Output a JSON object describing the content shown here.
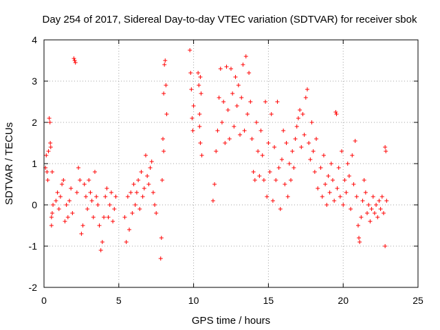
{
  "chart_data": {
    "type": "scatter",
    "title": "Day 254 of 2017, Sidereal Day-to-day VTEC variation (SDTVAR) for receiver sbok",
    "xlabel": "GPS time / hours",
    "ylabel": "SDTVAR / TECUs",
    "xlim": [
      0,
      25
    ],
    "ylim": [
      -2,
      4
    ],
    "xticks": [
      "0",
      "5",
      "10",
      "15",
      "20",
      "25"
    ],
    "yticks": [
      "-2",
      "-1",
      "0",
      "1",
      "2",
      "3",
      "4"
    ],
    "grid": true,
    "marker": "+",
    "color": "#ff0000",
    "series": [
      {
        "name": "SDTVAR",
        "points": [
          [
            0.1,
            0.9
          ],
          [
            0.15,
            1.2
          ],
          [
            0.2,
            0.8
          ],
          [
            0.25,
            0.6
          ],
          [
            0.3,
            1.3
          ],
          [
            0.35,
            2.1
          ],
          [
            0.4,
            2.0
          ],
          [
            0.42,
            1.5
          ],
          [
            0.45,
            1.4
          ],
          [
            0.5,
            -0.3
          ],
          [
            0.5,
            -0.5
          ],
          [
            0.55,
            -0.2
          ],
          [
            0.6,
            0.0
          ],
          [
            0.55,
            0.8
          ],
          [
            0.8,
            0.1
          ],
          [
            0.9,
            0.3
          ],
          [
            1.0,
            -0.1
          ],
          [
            1.1,
            0.2
          ],
          [
            1.2,
            0.5
          ],
          [
            1.3,
            0.6
          ],
          [
            1.4,
            -0.4
          ],
          [
            1.5,
            0.0
          ],
          [
            1.6,
            -0.3
          ],
          [
            1.7,
            0.1
          ],
          [
            1.8,
            0.4
          ],
          [
            1.9,
            -0.2
          ],
          [
            2.0,
            3.55
          ],
          [
            2.05,
            3.5
          ],
          [
            2.1,
            3.45
          ],
          [
            2.2,
            0.3
          ],
          [
            2.3,
            0.9
          ],
          [
            2.4,
            0.6
          ],
          [
            2.5,
            -0.7
          ],
          [
            2.6,
            -0.5
          ],
          [
            2.7,
            0.5
          ],
          [
            2.8,
            0.2
          ],
          [
            2.9,
            -0.1
          ],
          [
            3.0,
            0.6
          ],
          [
            3.1,
            0.3
          ],
          [
            3.2,
            0.1
          ],
          [
            3.3,
            -0.3
          ],
          [
            3.4,
            0.8
          ],
          [
            3.5,
            0.2
          ],
          [
            3.6,
            0.0
          ],
          [
            3.7,
            -0.5
          ],
          [
            3.8,
            -1.1
          ],
          [
            3.9,
            -0.9
          ],
          [
            4.0,
            -0.3
          ],
          [
            4.1,
            0.2
          ],
          [
            4.2,
            0.4
          ],
          [
            4.3,
            -0.3
          ],
          [
            4.4,
            0.0
          ],
          [
            4.5,
            0.3
          ],
          [
            4.6,
            -0.4
          ],
          [
            4.7,
            -0.1
          ],
          [
            4.8,
            0.2
          ],
          [
            5.4,
            -0.3
          ],
          [
            5.5,
            -0.9
          ],
          [
            5.6,
            0.2
          ],
          [
            5.7,
            -0.6
          ],
          [
            5.8,
            0.3
          ],
          [
            5.9,
            -0.2
          ],
          [
            6.0,
            0.5
          ],
          [
            6.1,
            0.0
          ],
          [
            6.2,
            0.3
          ],
          [
            6.3,
            0.6
          ],
          [
            6.4,
            -0.1
          ],
          [
            6.5,
            0.8
          ],
          [
            6.6,
            0.2
          ],
          [
            6.7,
            0.4
          ],
          [
            6.8,
            1.2
          ],
          [
            6.9,
            0.7
          ],
          [
            7.0,
            0.5
          ],
          [
            7.1,
            0.9
          ],
          [
            7.2,
            1.05
          ],
          [
            7.3,
            0.3
          ],
          [
            7.4,
            0.0
          ],
          [
            7.5,
            -0.2
          ],
          [
            7.8,
            -1.3
          ],
          [
            7.85,
            -0.8
          ],
          [
            7.9,
            0.6
          ],
          [
            7.95,
            1.6
          ],
          [
            8.0,
            2.7
          ],
          [
            8.05,
            3.4
          ],
          [
            8.1,
            3.5
          ],
          [
            8.15,
            2.9
          ],
          [
            8.2,
            2.2
          ],
          [
            8.0,
            1.3
          ],
          [
            9.75,
            3.75
          ],
          [
            9.8,
            3.2
          ],
          [
            9.85,
            2.8
          ],
          [
            9.9,
            2.1
          ],
          [
            9.95,
            1.8
          ],
          [
            10.0,
            2.4
          ],
          [
            10.3,
            3.2
          ],
          [
            10.35,
            2.9
          ],
          [
            10.4,
            1.9
          ],
          [
            10.45,
            1.5
          ],
          [
            10.5,
            2.7
          ],
          [
            10.55,
            1.2
          ],
          [
            10.4,
            2.2
          ],
          [
            10.45,
            3.1
          ],
          [
            11.3,
            0.1
          ],
          [
            11.4,
            0.5
          ],
          [
            11.5,
            1.3
          ],
          [
            11.6,
            1.8
          ],
          [
            11.7,
            2.6
          ],
          [
            11.8,
            3.3
          ],
          [
            11.9,
            2.0
          ],
          [
            12.0,
            2.5
          ],
          [
            12.1,
            1.5
          ],
          [
            12.2,
            3.35
          ],
          [
            12.3,
            2.3
          ],
          [
            12.4,
            1.6
          ],
          [
            12.5,
            3.3
          ],
          [
            12.6,
            2.7
          ],
          [
            12.7,
            1.9
          ],
          [
            12.8,
            3.1
          ],
          [
            12.9,
            2.4
          ],
          [
            13.0,
            2.9
          ],
          [
            13.1,
            1.7
          ],
          [
            13.2,
            2.6
          ],
          [
            13.3,
            3.4
          ],
          [
            13.4,
            1.8
          ],
          [
            13.5,
            3.6
          ],
          [
            13.6,
            2.2
          ],
          [
            13.7,
            3.2
          ],
          [
            13.8,
            2.5
          ],
          [
            13.9,
            1.6
          ],
          [
            14.0,
            0.8
          ],
          [
            14.1,
            0.6
          ],
          [
            14.2,
            2.0
          ],
          [
            14.3,
            1.3
          ],
          [
            14.4,
            0.7
          ],
          [
            14.5,
            1.8
          ],
          [
            14.6,
            1.2
          ],
          [
            14.7,
            0.6
          ],
          [
            14.8,
            2.5
          ],
          [
            14.9,
            0.2
          ],
          [
            15.0,
            1.5
          ],
          [
            15.1,
            0.8
          ],
          [
            15.2,
            2.2
          ],
          [
            15.3,
            0.1
          ],
          [
            15.4,
            1.4
          ],
          [
            15.5,
            0.6
          ],
          [
            15.6,
            2.5
          ],
          [
            15.7,
            0.9
          ],
          [
            15.8,
            -0.1
          ],
          [
            15.9,
            1.1
          ],
          [
            16.0,
            1.8
          ],
          [
            16.1,
            0.5
          ],
          [
            16.2,
            1.5
          ],
          [
            16.3,
            0.2
          ],
          [
            16.4,
            1.0
          ],
          [
            16.5,
            0.6
          ],
          [
            16.6,
            1.3
          ],
          [
            16.7,
            0.9
          ],
          [
            16.8,
            1.6
          ],
          [
            16.9,
            1.9
          ],
          [
            17.0,
            2.1
          ],
          [
            17.1,
            2.3
          ],
          [
            17.2,
            1.4
          ],
          [
            17.3,
            2.2
          ],
          [
            17.4,
            1.7
          ],
          [
            17.5,
            2.6
          ],
          [
            17.6,
            2.8
          ],
          [
            17.7,
            1.5
          ],
          [
            17.8,
            1.1
          ],
          [
            17.9,
            2.0
          ],
          [
            18.0,
            1.3
          ],
          [
            18.1,
            0.8
          ],
          [
            18.2,
            1.6
          ],
          [
            18.3,
            0.4
          ],
          [
            18.5,
            0.9
          ],
          [
            18.6,
            0.2
          ],
          [
            18.7,
            1.2
          ],
          [
            18.8,
            0.5
          ],
          [
            18.9,
            0.0
          ],
          [
            19.0,
            0.7
          ],
          [
            19.1,
            0.3
          ],
          [
            19.2,
            1.0
          ],
          [
            19.3,
            0.6
          ],
          [
            19.4,
            0.1
          ],
          [
            19.5,
            2.25
          ],
          [
            19.55,
            2.2
          ],
          [
            19.6,
            0.4
          ],
          [
            19.7,
            0.9
          ],
          [
            19.8,
            0.2
          ],
          [
            19.9,
            1.3
          ],
          [
            20.0,
            0.0
          ],
          [
            20.1,
            0.6
          ],
          [
            20.2,
            0.3
          ],
          [
            20.3,
            1.0
          ],
          [
            20.4,
            0.7
          ],
          [
            20.5,
            -0.1
          ],
          [
            20.6,
            1.2
          ],
          [
            20.7,
            0.5
          ],
          [
            20.8,
            1.55
          ],
          [
            20.9,
            0.2
          ],
          [
            21.0,
            -0.5
          ],
          [
            21.05,
            -0.8
          ],
          [
            21.1,
            -0.9
          ],
          [
            21.2,
            -0.3
          ],
          [
            21.3,
            0.1
          ],
          [
            21.4,
            0.6
          ],
          [
            21.5,
            0.3
          ],
          [
            21.6,
            -0.2
          ],
          [
            21.7,
            0.0
          ],
          [
            21.8,
            -0.4
          ],
          [
            21.9,
            -0.1
          ],
          [
            22.0,
            0.2
          ],
          [
            22.1,
            -0.2
          ],
          [
            22.2,
            0.0
          ],
          [
            22.3,
            -0.3
          ],
          [
            22.4,
            0.1
          ],
          [
            22.5,
            -0.1
          ],
          [
            22.6,
            0.2
          ],
          [
            22.7,
            -0.2
          ],
          [
            22.8,
            1.4
          ],
          [
            22.85,
            1.3
          ],
          [
            22.8,
            -1.0
          ],
          [
            22.9,
            0.1
          ]
        ]
      }
    ]
  }
}
